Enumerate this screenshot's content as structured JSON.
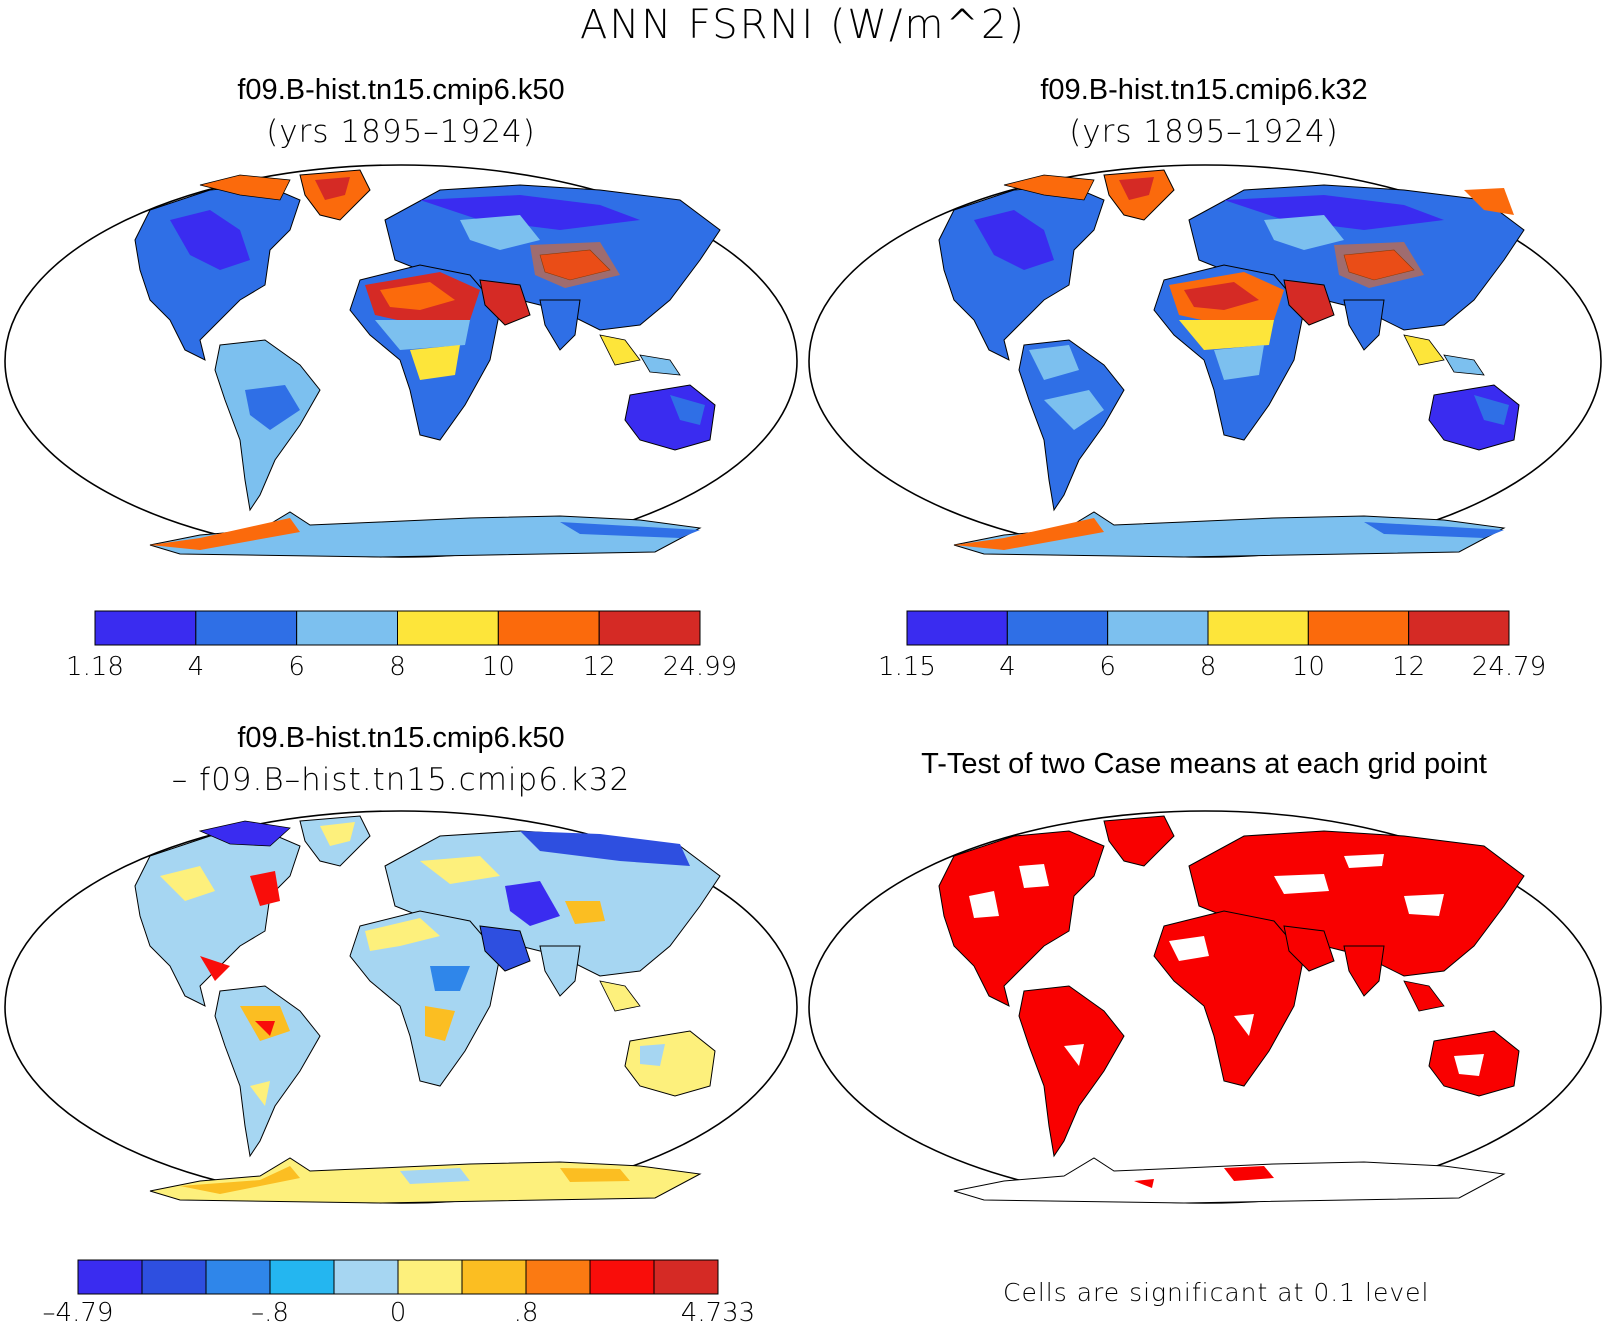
{
  "figure": {
    "title": "ANN FSRNI (W/m^2)"
  },
  "panels": [
    {
      "id": "k50",
      "title": "f09.B-hist.tn15.cmip6.k50",
      "subtitle": "(yrs 1895–1924)",
      "colorbar": {
        "colors": [
          "#3a2cf0",
          "#2f6fe6",
          "#7cc0ef",
          "#fde53a",
          "#fb6a0c",
          "#d52a25"
        ],
        "ticks": [
          "1.18",
          "4",
          "6",
          "8",
          "10",
          "12",
          "24.99"
        ]
      }
    },
    {
      "id": "k32",
      "title": "f09.B-hist.tn15.cmip6.k32",
      "subtitle": "(yrs 1895–1924)",
      "colorbar": {
        "colors": [
          "#3a2cf0",
          "#2f6fe6",
          "#7cc0ef",
          "#fde53a",
          "#fb6a0c",
          "#d52a25"
        ],
        "ticks": [
          "1.15",
          "4",
          "6",
          "8",
          "10",
          "12",
          "24.79"
        ]
      }
    },
    {
      "id": "diff",
      "title": "f09.B-hist.tn15.cmip6.k50",
      "subtitle": "– f09.B–hist.tn15.cmip6.k32",
      "colorbar": {
        "colors": [
          "#3a2cf0",
          "#2e4fe0",
          "#2f86ea",
          "#24b6f0",
          "#a6d6f2",
          "#fdf07c",
          "#fbbe22",
          "#fb7a12",
          "#f90d0a",
          "#d52a25"
        ],
        "ticks": [
          "–4.79",
          "–.8",
          "0",
          ".8",
          "4.733"
        ]
      }
    },
    {
      "id": "ttest",
      "title": "T-Test of two Case means at each grid point",
      "note": "Cells are significant at 0.1 level",
      "color": "#f90000"
    }
  ]
}
